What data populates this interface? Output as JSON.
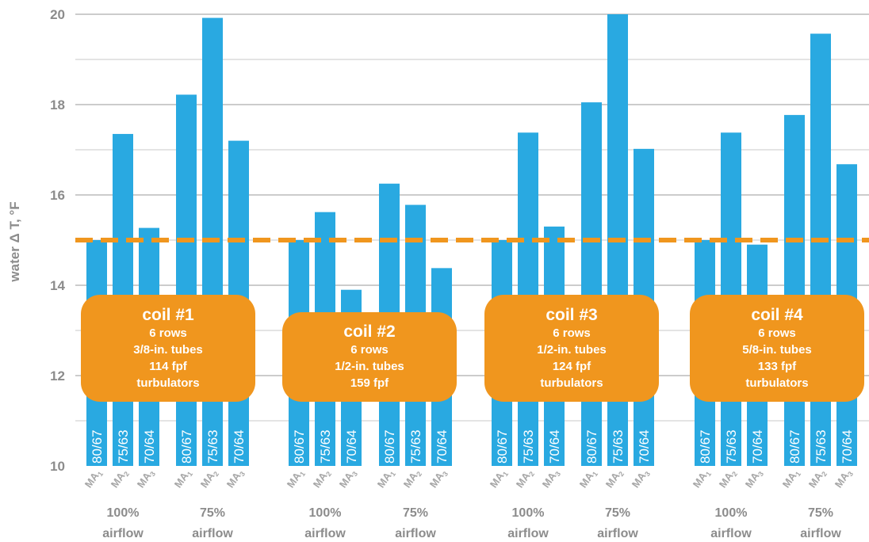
{
  "chart_data": {
    "type": "bar",
    "ylabel": "water Δ T, °F",
    "ylim": [
      10,
      20
    ],
    "yticks": [
      10,
      12,
      14,
      16,
      18,
      20
    ],
    "grid": true,
    "reference_line": {
      "value": 15,
      "style": "dashed",
      "color": "#f0961e"
    },
    "bar_color": "#29a9e1",
    "groups": [
      {
        "coil": 1,
        "airflow": "100% airflow",
        "line1": "100%",
        "line2": "airflow",
        "bars": [
          {
            "ma": "MA",
            "sub": "1",
            "label": "80/67",
            "value": 15.0
          },
          {
            "ma": "MA",
            "sub": "2",
            "label": "75/63",
            "value": 17.35
          },
          {
            "ma": "MA",
            "sub": "3",
            "label": "70/64",
            "value": 15.27
          }
        ]
      },
      {
        "coil": 1,
        "airflow": "75% airflow",
        "line1": "75%",
        "line2": "airflow",
        "bars": [
          {
            "ma": "MA",
            "sub": "1",
            "label": "80/67",
            "value": 18.22
          },
          {
            "ma": "MA",
            "sub": "2",
            "label": "75/63",
            "value": 19.92
          },
          {
            "ma": "MA",
            "sub": "3",
            "label": "70/64",
            "value": 17.2
          }
        ]
      },
      {
        "coil": 2,
        "airflow": "100% airflow",
        "line1": "100%",
        "line2": "airflow",
        "bars": [
          {
            "ma": "MA",
            "sub": "1",
            "label": "80/67",
            "value": 15.0
          },
          {
            "ma": "MA",
            "sub": "2",
            "label": "75/63",
            "value": 15.62
          },
          {
            "ma": "MA",
            "sub": "3",
            "label": "70/64",
            "value": 13.9
          }
        ]
      },
      {
        "coil": 2,
        "airflow": "75% airflow",
        "line1": "75%",
        "line2": "airflow",
        "bars": [
          {
            "ma": "MA",
            "sub": "1",
            "label": "80/67",
            "value": 16.25
          },
          {
            "ma": "MA",
            "sub": "2",
            "label": "75/63",
            "value": 15.78
          },
          {
            "ma": "MA",
            "sub": "3",
            "label": "70/64",
            "value": 14.38
          }
        ]
      },
      {
        "coil": 3,
        "airflow": "100% airflow",
        "line1": "100%",
        "line2": "airflow",
        "bars": [
          {
            "ma": "MA",
            "sub": "1",
            "label": "80/67",
            "value": 15.0
          },
          {
            "ma": "MA",
            "sub": "2",
            "label": "75/63",
            "value": 17.38
          },
          {
            "ma": "MA",
            "sub": "3",
            "label": "70/64",
            "value": 15.3
          }
        ]
      },
      {
        "coil": 3,
        "airflow": "75% airflow",
        "line1": "75%",
        "line2": "airflow",
        "bars": [
          {
            "ma": "MA",
            "sub": "1",
            "label": "80/67",
            "value": 18.05
          },
          {
            "ma": "MA",
            "sub": "2",
            "label": "75/63",
            "value": 20.0
          },
          {
            "ma": "MA",
            "sub": "3",
            "label": "70/64",
            "value": 17.02
          }
        ]
      },
      {
        "coil": 4,
        "airflow": "100% airflow",
        "line1": "100%",
        "line2": "airflow",
        "bars": [
          {
            "ma": "MA",
            "sub": "1",
            "label": "80/67",
            "value": 15.0
          },
          {
            "ma": "MA",
            "sub": "2",
            "label": "75/63",
            "value": 17.38
          },
          {
            "ma": "MA",
            "sub": "3",
            "label": "70/64",
            "value": 14.9
          }
        ]
      },
      {
        "coil": 4,
        "airflow": "75% airflow",
        "line1": "75%",
        "line2": "airflow",
        "bars": [
          {
            "ma": "MA",
            "sub": "1",
            "label": "80/67",
            "value": 17.77
          },
          {
            "ma": "MA",
            "sub": "2",
            "label": "75/63",
            "value": 19.57
          },
          {
            "ma": "MA",
            "sub": "3",
            "label": "70/64",
            "value": 16.68
          }
        ]
      }
    ],
    "annotations": [
      {
        "coil": 1,
        "title": "coil #1",
        "lines": [
          "6 rows",
          "3/8-in. tubes",
          "114 fpf",
          "turbulators"
        ]
      },
      {
        "coil": 2,
        "title": "coil #2",
        "lines": [
          "6 rows",
          "1/2-in. tubes",
          "159 fpf"
        ]
      },
      {
        "coil": 3,
        "title": "coil #3",
        "lines": [
          "6 rows",
          "1/2-in. tubes",
          "124 fpf",
          "turbulators"
        ]
      },
      {
        "coil": 4,
        "title": "coil #4",
        "lines": [
          "6 rows",
          "5/8-in. tubes",
          "133 fpf",
          "turbulators"
        ]
      }
    ]
  }
}
